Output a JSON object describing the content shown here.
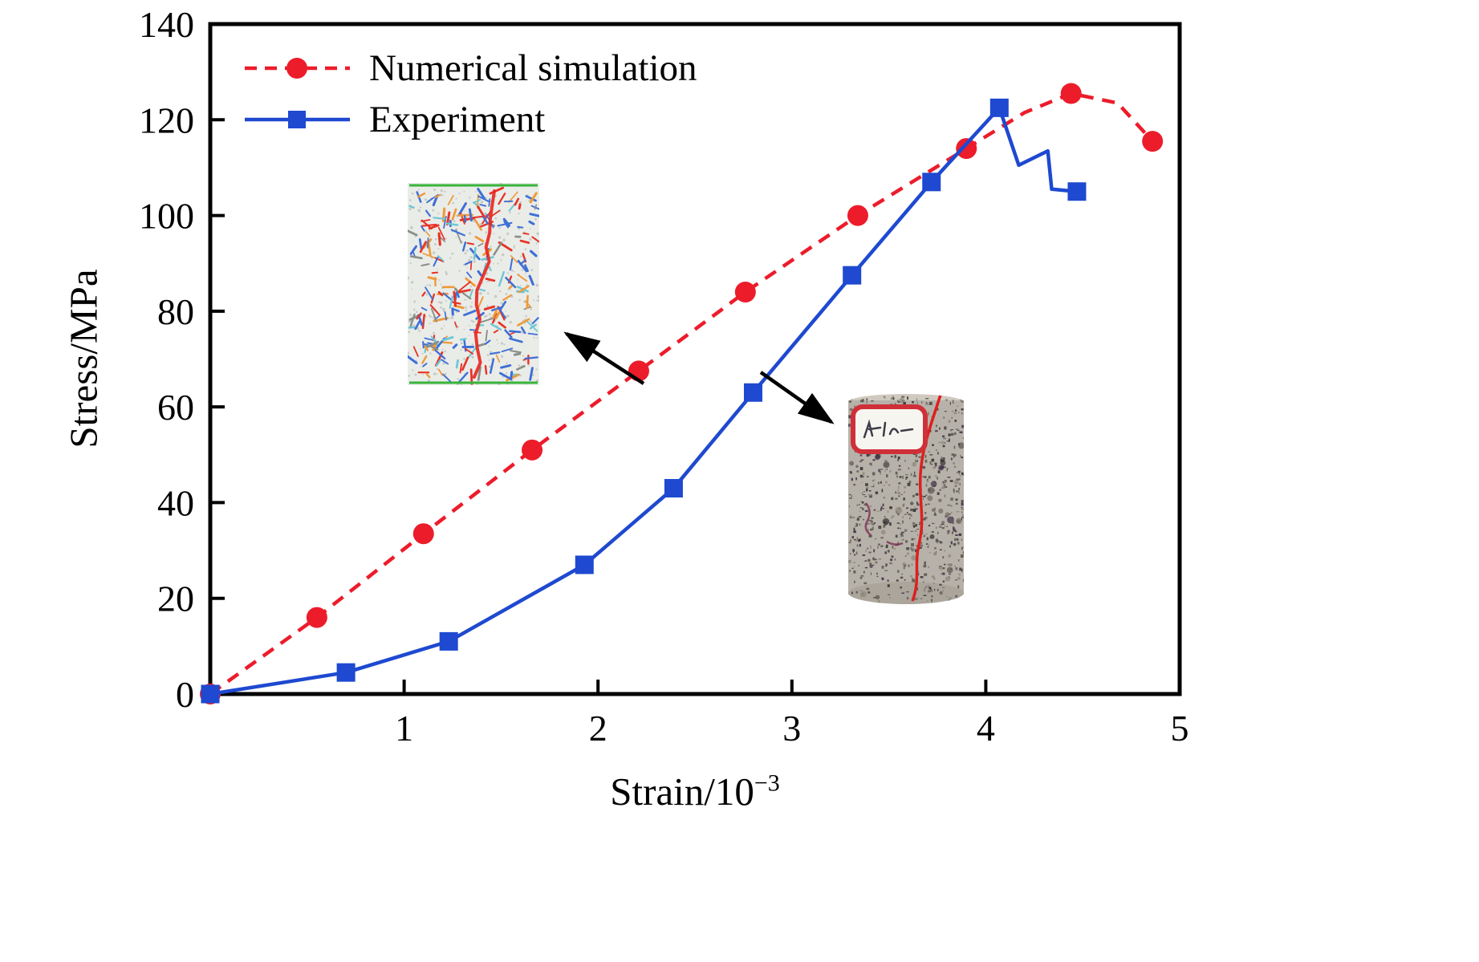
{
  "chart_data": {
    "type": "line",
    "title": "",
    "xlabel": "Strain/10⁻³",
    "xlabel_base": "Strain/10",
    "xlabel_sup": "−3",
    "ylabel": "Stress/MPa",
    "xlim": [
      0,
      5
    ],
    "ylim": [
      0,
      140
    ],
    "xticks": [
      1,
      2,
      3,
      4,
      5
    ],
    "yticks": [
      0,
      20,
      40,
      60,
      80,
      100,
      120,
      140
    ],
    "grid": false,
    "legend_position": "top-left",
    "series": [
      {
        "name": "Numerical simulation",
        "color": "#ec1c2b",
        "line_style": "dashed",
        "marker": "circle",
        "x": [
          0,
          0.55,
          1.1,
          1.66,
          2.21,
          2.76,
          3.34,
          3.9,
          4.44,
          4.86
        ],
        "y": [
          0,
          16,
          33.5,
          51,
          67.5,
          84,
          100,
          114,
          125.5,
          115.5
        ],
        "line_x": [
          0,
          0.55,
          1.1,
          1.66,
          2.21,
          2.76,
          3.34,
          3.9,
          4.2,
          4.44,
          4.68,
          4.86
        ],
        "line_y": [
          0,
          16,
          33.5,
          51,
          67.5,
          84,
          100,
          114,
          121.5,
          125.5,
          123.5,
          115.5
        ]
      },
      {
        "name": "Experiment",
        "color": "#1e49d0",
        "line_style": "solid",
        "marker": "square",
        "x": [
          0,
          0.7,
          1.23,
          1.93,
          2.39,
          2.8,
          3.31,
          3.72,
          4.07,
          4.47
        ],
        "y": [
          0,
          4.5,
          11,
          27,
          43,
          63,
          87.5,
          107,
          122.5,
          105
        ],
        "line_x": [
          0,
          0.7,
          1.23,
          1.93,
          2.39,
          2.8,
          3.31,
          3.72,
          4.07,
          4.17,
          4.32,
          4.34,
          4.47
        ],
        "line_y": [
          0,
          4.5,
          11,
          27,
          43,
          63,
          87.5,
          107,
          122.5,
          110.5,
          113.5,
          105.5,
          105
        ]
      }
    ],
    "annotations": [
      {
        "type": "arrow",
        "points_to": "numerical-simulation-specimen"
      },
      {
        "type": "arrow",
        "points_to": "experiment-specimen-photo"
      }
    ],
    "insets": [
      {
        "name": "numerical-simulation-specimen"
      },
      {
        "name": "experiment-specimen-photo"
      }
    ]
  }
}
